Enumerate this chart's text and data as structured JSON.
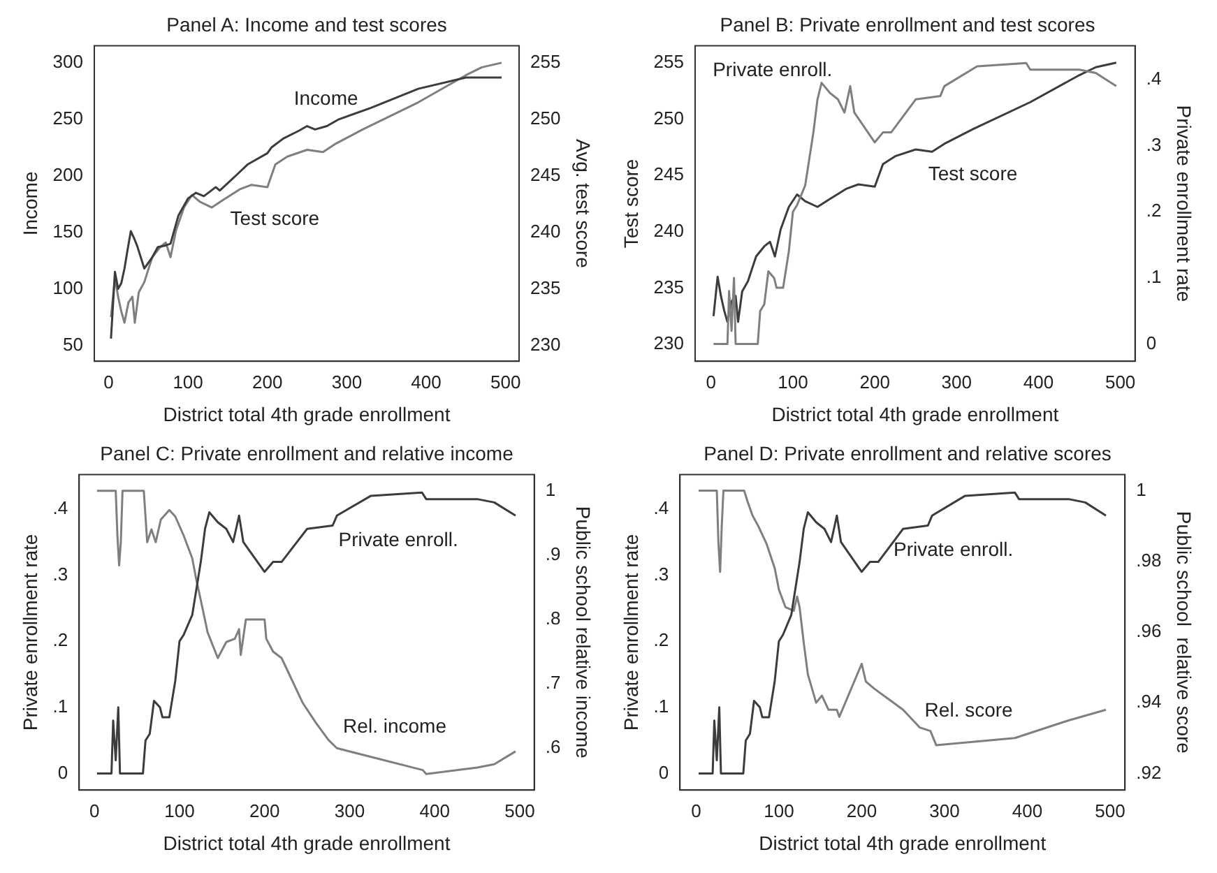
{
  "chart_data": [
    {
      "type": "line",
      "title": "Panel A: Income and test scores",
      "xlabel": "District total 4th grade enrollment",
      "ylabel": "Income",
      "y2label": "Avg. test score",
      "xlim": [
        -18,
        517
      ],
      "xticks": [
        0,
        100,
        200,
        300,
        400,
        500
      ],
      "ylim": [
        36,
        315
      ],
      "yticks": [
        50,
        100,
        150,
        200,
        250,
        300
      ],
      "y2lim": [
        228.6,
        256.5
      ],
      "y2ticks": [
        230,
        235,
        240,
        245,
        250,
        255
      ],
      "grid": false,
      "legend": false,
      "series": [
        {
          "name": "Income",
          "color": "#3c3c3c",
          "x": [
            3,
            8,
            12,
            16,
            20,
            24,
            28,
            32,
            36,
            45,
            55,
            62,
            70,
            78,
            88,
            100,
            110,
            120,
            135,
            140,
            160,
            175,
            200,
            205,
            220,
            240,
            250,
            260,
            275,
            290,
            330,
            390,
            450,
            495
          ],
          "values": [
            56,
            115,
            100,
            105,
            118,
            135,
            151,
            145,
            138,
            118,
            128,
            137,
            138,
            140,
            165,
            180,
            185,
            182,
            190,
            187,
            200,
            210,
            220,
            225,
            233,
            240,
            244,
            241,
            244,
            250,
            260,
            277,
            287,
            287
          ]
        },
        {
          "name": "Test score",
          "color": "#7f7f7f",
          "axis": "y2",
          "x": [
            3,
            8,
            12,
            16,
            20,
            25,
            30,
            33,
            38,
            45,
            55,
            65,
            72,
            78,
            85,
            95,
            105,
            115,
            130,
            145,
            165,
            180,
            200,
            210,
            225,
            250,
            270,
            285,
            320,
            390,
            450,
            470,
            495
          ],
          "values": [
            232.5,
            236,
            234.3,
            233,
            232,
            233.8,
            234.3,
            232,
            234.7,
            235.6,
            237.8,
            238.7,
            239.1,
            237.8,
            240.2,
            242.2,
            243.3,
            242.7,
            242.2,
            242.9,
            243.8,
            244.2,
            244,
            246,
            246.7,
            247.3,
            247.1,
            247.8,
            249.1,
            251.5,
            253.9,
            254.6,
            255
          ]
        }
      ]
    },
    {
      "type": "line",
      "title": "Panel B: Private enrollment and test scores",
      "xlabel": "District total 4th grade enrollment",
      "ylabel": "Test score",
      "y2label": "Private enrollment rate",
      "xlim": [
        -19.5,
        518
      ],
      "xticks": [
        0,
        100,
        200,
        300,
        400,
        500
      ],
      "ylim": [
        228.5,
        256.5
      ],
      "yticks": [
        230,
        235,
        240,
        245,
        250,
        255
      ],
      "y2lim": [
        -0.026,
        0.451
      ],
      "y2ticks": [
        0,
        {
          "value": 0.1,
          "label": ".1"
        },
        {
          "value": 0.2,
          "label": ".2"
        },
        {
          "value": 0.3,
          "label": ".3"
        },
        {
          "value": 0.4,
          "label": ".4"
        }
      ],
      "grid": false,
      "legend": false,
      "series": [
        {
          "name": "Private enroll.",
          "color": "#7f7f7f",
          "axis": "y2",
          "x": [
            3,
            20,
            22,
            25,
            28,
            30,
            35,
            57,
            60,
            65,
            70,
            77,
            80,
            88,
            95,
            100,
            105,
            115,
            125,
            130,
            135,
            145,
            155,
            163,
            170,
            175,
            200,
            210,
            220,
            250,
            280,
            285,
            325,
            385,
            390,
            450,
            470,
            495
          ],
          "values": [
            0,
            0,
            0.08,
            0.02,
            0.1,
            0,
            0,
            0,
            0.05,
            0.06,
            0.11,
            0.1,
            0.085,
            0.085,
            0.14,
            0.2,
            0.21,
            0.24,
            0.32,
            0.37,
            0.395,
            0.38,
            0.37,
            0.35,
            0.39,
            0.35,
            0.305,
            0.32,
            0.32,
            0.37,
            0.375,
            0.39,
            0.42,
            0.425,
            0.415,
            0.415,
            0.41,
            0.39
          ]
        },
        {
          "name": "Test score",
          "color": "#3c3c3c",
          "x": [
            3,
            8,
            12,
            16,
            20,
            25,
            30,
            33,
            38,
            45,
            55,
            65,
            72,
            78,
            85,
            95,
            105,
            115,
            130,
            145,
            165,
            180,
            200,
            210,
            225,
            250,
            270,
            285,
            320,
            390,
            450,
            470,
            495
          ],
          "values": [
            232.5,
            236,
            234.3,
            233,
            232,
            233.8,
            234.3,
            232,
            234.7,
            235.6,
            237.8,
            238.7,
            239.1,
            237.8,
            240.2,
            242.2,
            243.3,
            242.7,
            242.2,
            242.9,
            243.8,
            244.2,
            244,
            246,
            246.7,
            247.3,
            247.1,
            247.8,
            249.1,
            251.5,
            253.9,
            254.6,
            255
          ]
        }
      ]
    },
    {
      "type": "line",
      "title": "Panel C: Private enrollment and relative income",
      "xlabel": "District total 4th grade enrollment",
      "ylabel": "Private enrollment rate",
      "y2label": "Public school relative income",
      "xlim": [
        -18,
        517
      ],
      "xticks": [
        0,
        100,
        200,
        300,
        400,
        500
      ],
      "ylim": [
        -0.025,
        0.452
      ],
      "yticks": [
        0,
        {
          "value": 0.1,
          "label": ".1"
        },
        {
          "value": 0.2,
          "label": ".2"
        },
        {
          "value": 0.3,
          "label": ".3"
        },
        {
          "value": 0.4,
          "label": ".4"
        }
      ],
      "y2lim": [
        0.535,
        1.025
      ],
      "y2ticks": [
        {
          "value": 0.6,
          "label": ".6"
        },
        {
          "value": 0.7,
          "label": ".7"
        },
        {
          "value": 0.8,
          "label": ".8"
        },
        {
          "value": 0.9,
          "label": ".9"
        },
        1
      ],
      "grid": false,
      "legend": false,
      "series": [
        {
          "name": "Private enroll.",
          "color": "#3c3c3c",
          "x": [
            3,
            20,
            22,
            25,
            28,
            30,
            35,
            57,
            60,
            65,
            70,
            77,
            80,
            88,
            95,
            100,
            105,
            115,
            125,
            130,
            135,
            145,
            155,
            163,
            170,
            175,
            200,
            210,
            220,
            250,
            280,
            285,
            325,
            385,
            390,
            450,
            470,
            495
          ],
          "values": [
            0,
            0,
            0.08,
            0.02,
            0.1,
            0,
            0,
            0,
            0.05,
            0.06,
            0.11,
            0.1,
            0.085,
            0.085,
            0.14,
            0.2,
            0.21,
            0.24,
            0.32,
            0.37,
            0.395,
            0.38,
            0.37,
            0.35,
            0.39,
            0.35,
            0.305,
            0.32,
            0.32,
            0.37,
            0.375,
            0.39,
            0.42,
            0.425,
            0.415,
            0.415,
            0.41,
            0.39
          ]
        },
        {
          "name": "Rel. income",
          "color": "#7f7f7f",
          "axis": "y2",
          "x": [
            3,
            25,
            27,
            29,
            31,
            33,
            58,
            60,
            62,
            67,
            72,
            78,
            88,
            95,
            105,
            115,
            120,
            125,
            133,
            145,
            155,
            165,
            170,
            172,
            178,
            200,
            202,
            210,
            220,
            245,
            260,
            275,
            285,
            386,
            390,
            450,
            470,
            495
          ],
          "values": [
            1,
            1,
            0.93,
            0.884,
            0.92,
            1,
            1,
            0.96,
            0.92,
            0.94,
            0.92,
            0.955,
            0.97,
            0.96,
            0.93,
            0.895,
            0.86,
            0.83,
            0.78,
            0.74,
            0.765,
            0.77,
            0.785,
            0.745,
            0.8,
            0.8,
            0.77,
            0.75,
            0.74,
            0.67,
            0.64,
            0.613,
            0.6,
            0.566,
            0.56,
            0.57,
            0.575,
            0.595
          ]
        }
      ]
    },
    {
      "type": "line",
      "title": "Panel D: Private enrollment and relative scores",
      "xlabel": "District total 4th grade enrollment",
      "ylabel": "Private enrollment rate",
      "y2label": "Public school  relative score",
      "xlim": [
        -19.5,
        518
      ],
      "xticks": [
        0,
        100,
        200,
        300,
        400,
        500
      ],
      "ylim": [
        -0.025,
        0.452
      ],
      "yticks": [
        0,
        {
          "value": 0.1,
          "label": ".1"
        },
        {
          "value": 0.2,
          "label": ".2"
        },
        {
          "value": 0.3,
          "label": ".3"
        },
        {
          "value": 0.4,
          "label": ".4"
        }
      ],
      "y2lim": [
        0.9153,
        1.0045
      ],
      "y2ticks": [
        {
          "value": 0.92,
          "label": ".92"
        },
        {
          "value": 0.94,
          "label": ".94"
        },
        {
          "value": 0.96,
          "label": ".96"
        },
        {
          "value": 0.98,
          "label": ".98"
        },
        1
      ],
      "grid": false,
      "legend": false,
      "series": [
        {
          "name": "Private enroll.",
          "color": "#3c3c3c",
          "x": [
            3,
            20,
            22,
            25,
            28,
            30,
            35,
            57,
            60,
            65,
            70,
            77,
            80,
            88,
            95,
            100,
            105,
            115,
            125,
            130,
            135,
            145,
            155,
            163,
            170,
            175,
            200,
            210,
            220,
            250,
            280,
            285,
            325,
            385,
            390,
            450,
            470,
            495
          ],
          "values": [
            0,
            0,
            0.08,
            0.02,
            0.1,
            0,
            0,
            0,
            0.05,
            0.06,
            0.11,
            0.1,
            0.085,
            0.085,
            0.14,
            0.2,
            0.21,
            0.24,
            0.32,
            0.37,
            0.395,
            0.38,
            0.37,
            0.35,
            0.39,
            0.35,
            0.305,
            0.32,
            0.32,
            0.37,
            0.375,
            0.39,
            0.42,
            0.425,
            0.415,
            0.415,
            0.41,
            0.39
          ]
        },
        {
          "name": "Rel. score",
          "color": "#7f7f7f",
          "axis": "y2",
          "x": [
            3,
            25,
            27,
            29,
            31,
            33,
            58,
            62,
            68,
            75,
            85,
            95,
            100,
            108,
            118,
            122,
            125,
            130,
            135,
            145,
            152,
            160,
            170,
            173,
            200,
            205,
            215,
            250,
            270,
            283,
            290,
            385,
            450,
            495
          ],
          "values": [
            1,
            1,
            0.985,
            0.977,
            0.99,
            1,
            1,
            0.997,
            0.993,
            0.99,
            0.985,
            0.978,
            0.972,
            0.967,
            0.966,
            0.97,
            0.967,
            0.957,
            0.948,
            0.94,
            0.942,
            0.938,
            0.938,
            0.936,
            0.951,
            0.946,
            0.944,
            0.938,
            0.933,
            0.932,
            0.928,
            0.93,
            0.935,
            0.938
          ]
        }
      ]
    }
  ]
}
